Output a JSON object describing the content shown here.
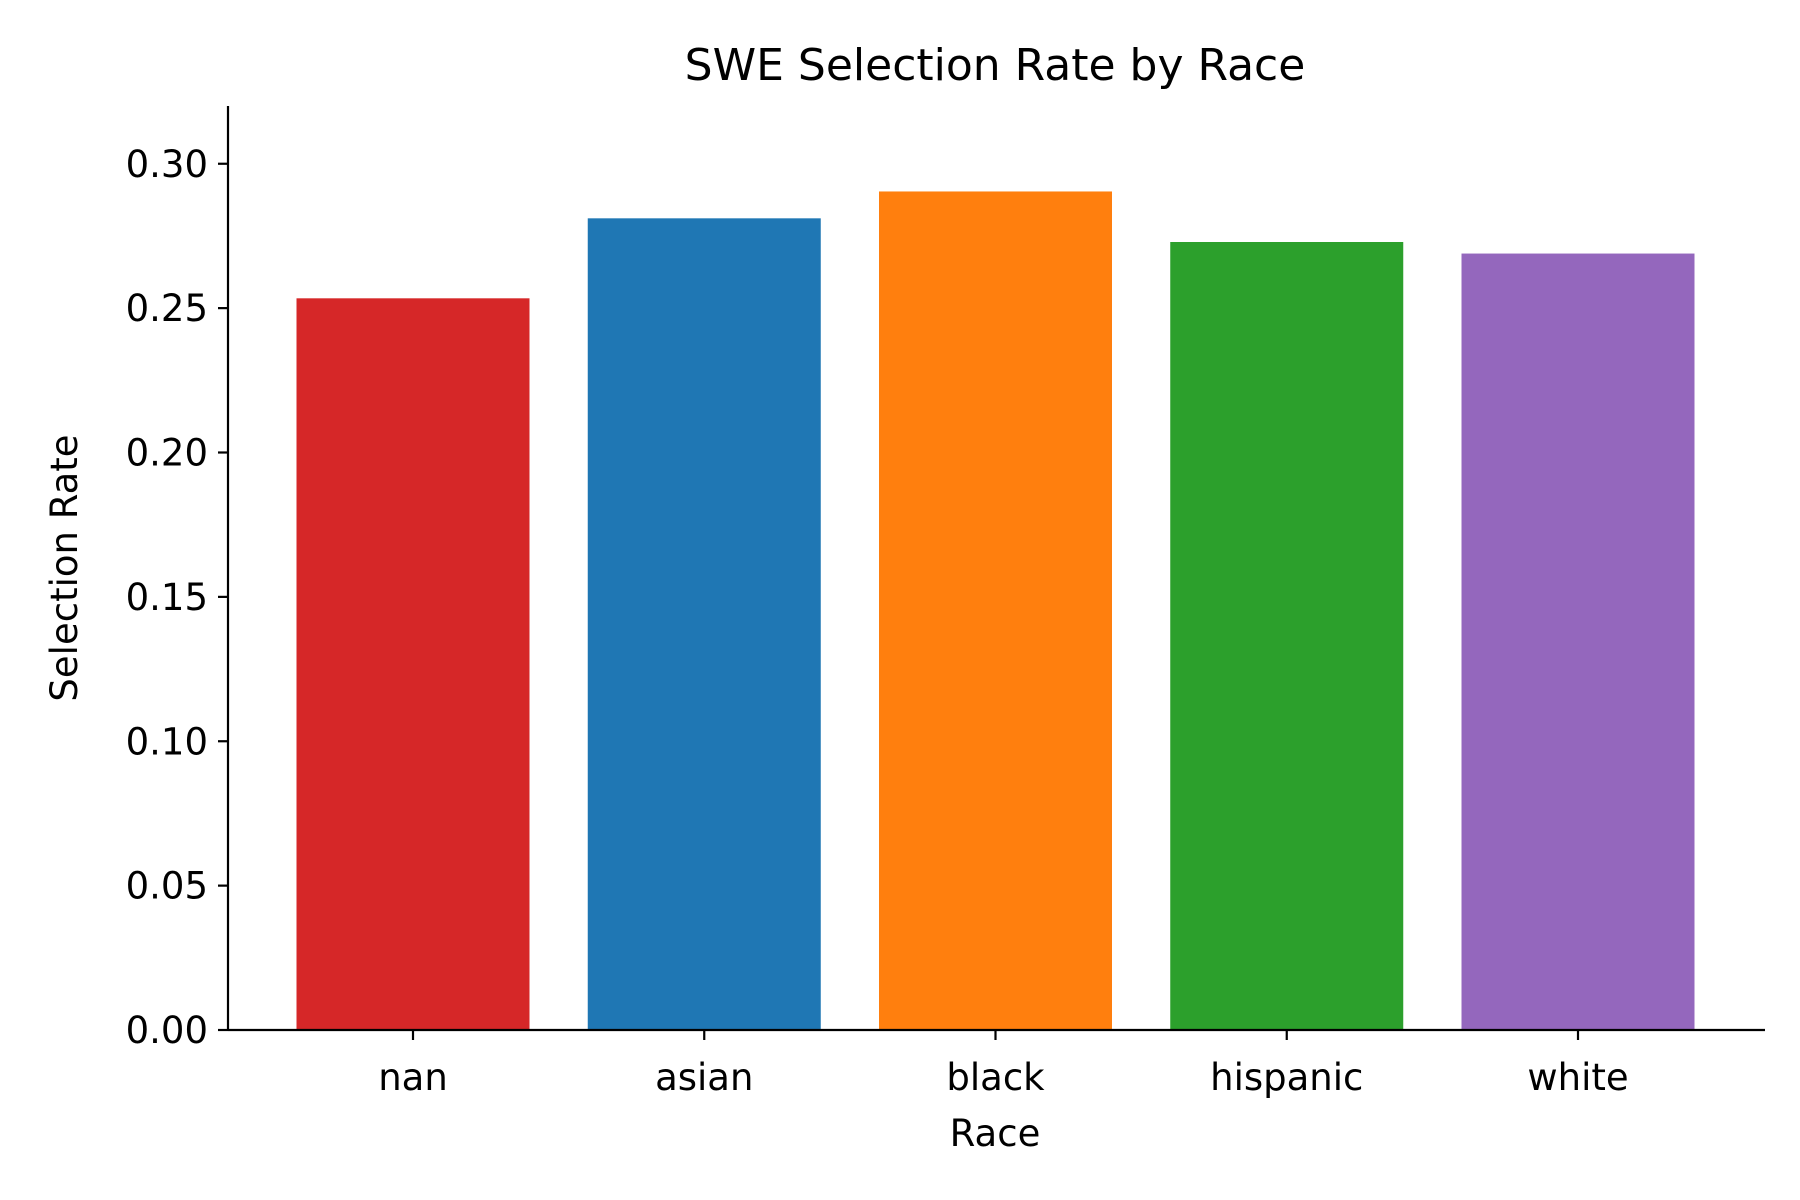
{
  "chart_data": {
    "type": "bar",
    "title": "SWE Selection Rate by Race",
    "xlabel": "Race",
    "ylabel": "Selection Rate",
    "categories": [
      "nan",
      "asian",
      "black",
      "hispanic",
      "white"
    ],
    "values": [
      0.2534,
      0.2811,
      0.2904,
      0.2729,
      0.2689
    ],
    "colors": [
      "#d62728",
      "#1f77b4",
      "#ff7f0e",
      "#2ca02c",
      "#9467bd"
    ],
    "ylim": [
      0,
      0.32
    ],
    "yticks": [
      0.0,
      0.05,
      0.1,
      0.15,
      0.2,
      0.25,
      0.3
    ],
    "ytick_labels": [
      "0.00",
      "0.05",
      "0.10",
      "0.15",
      "0.20",
      "0.25",
      "0.30"
    ],
    "grid": false,
    "legend": "none"
  }
}
